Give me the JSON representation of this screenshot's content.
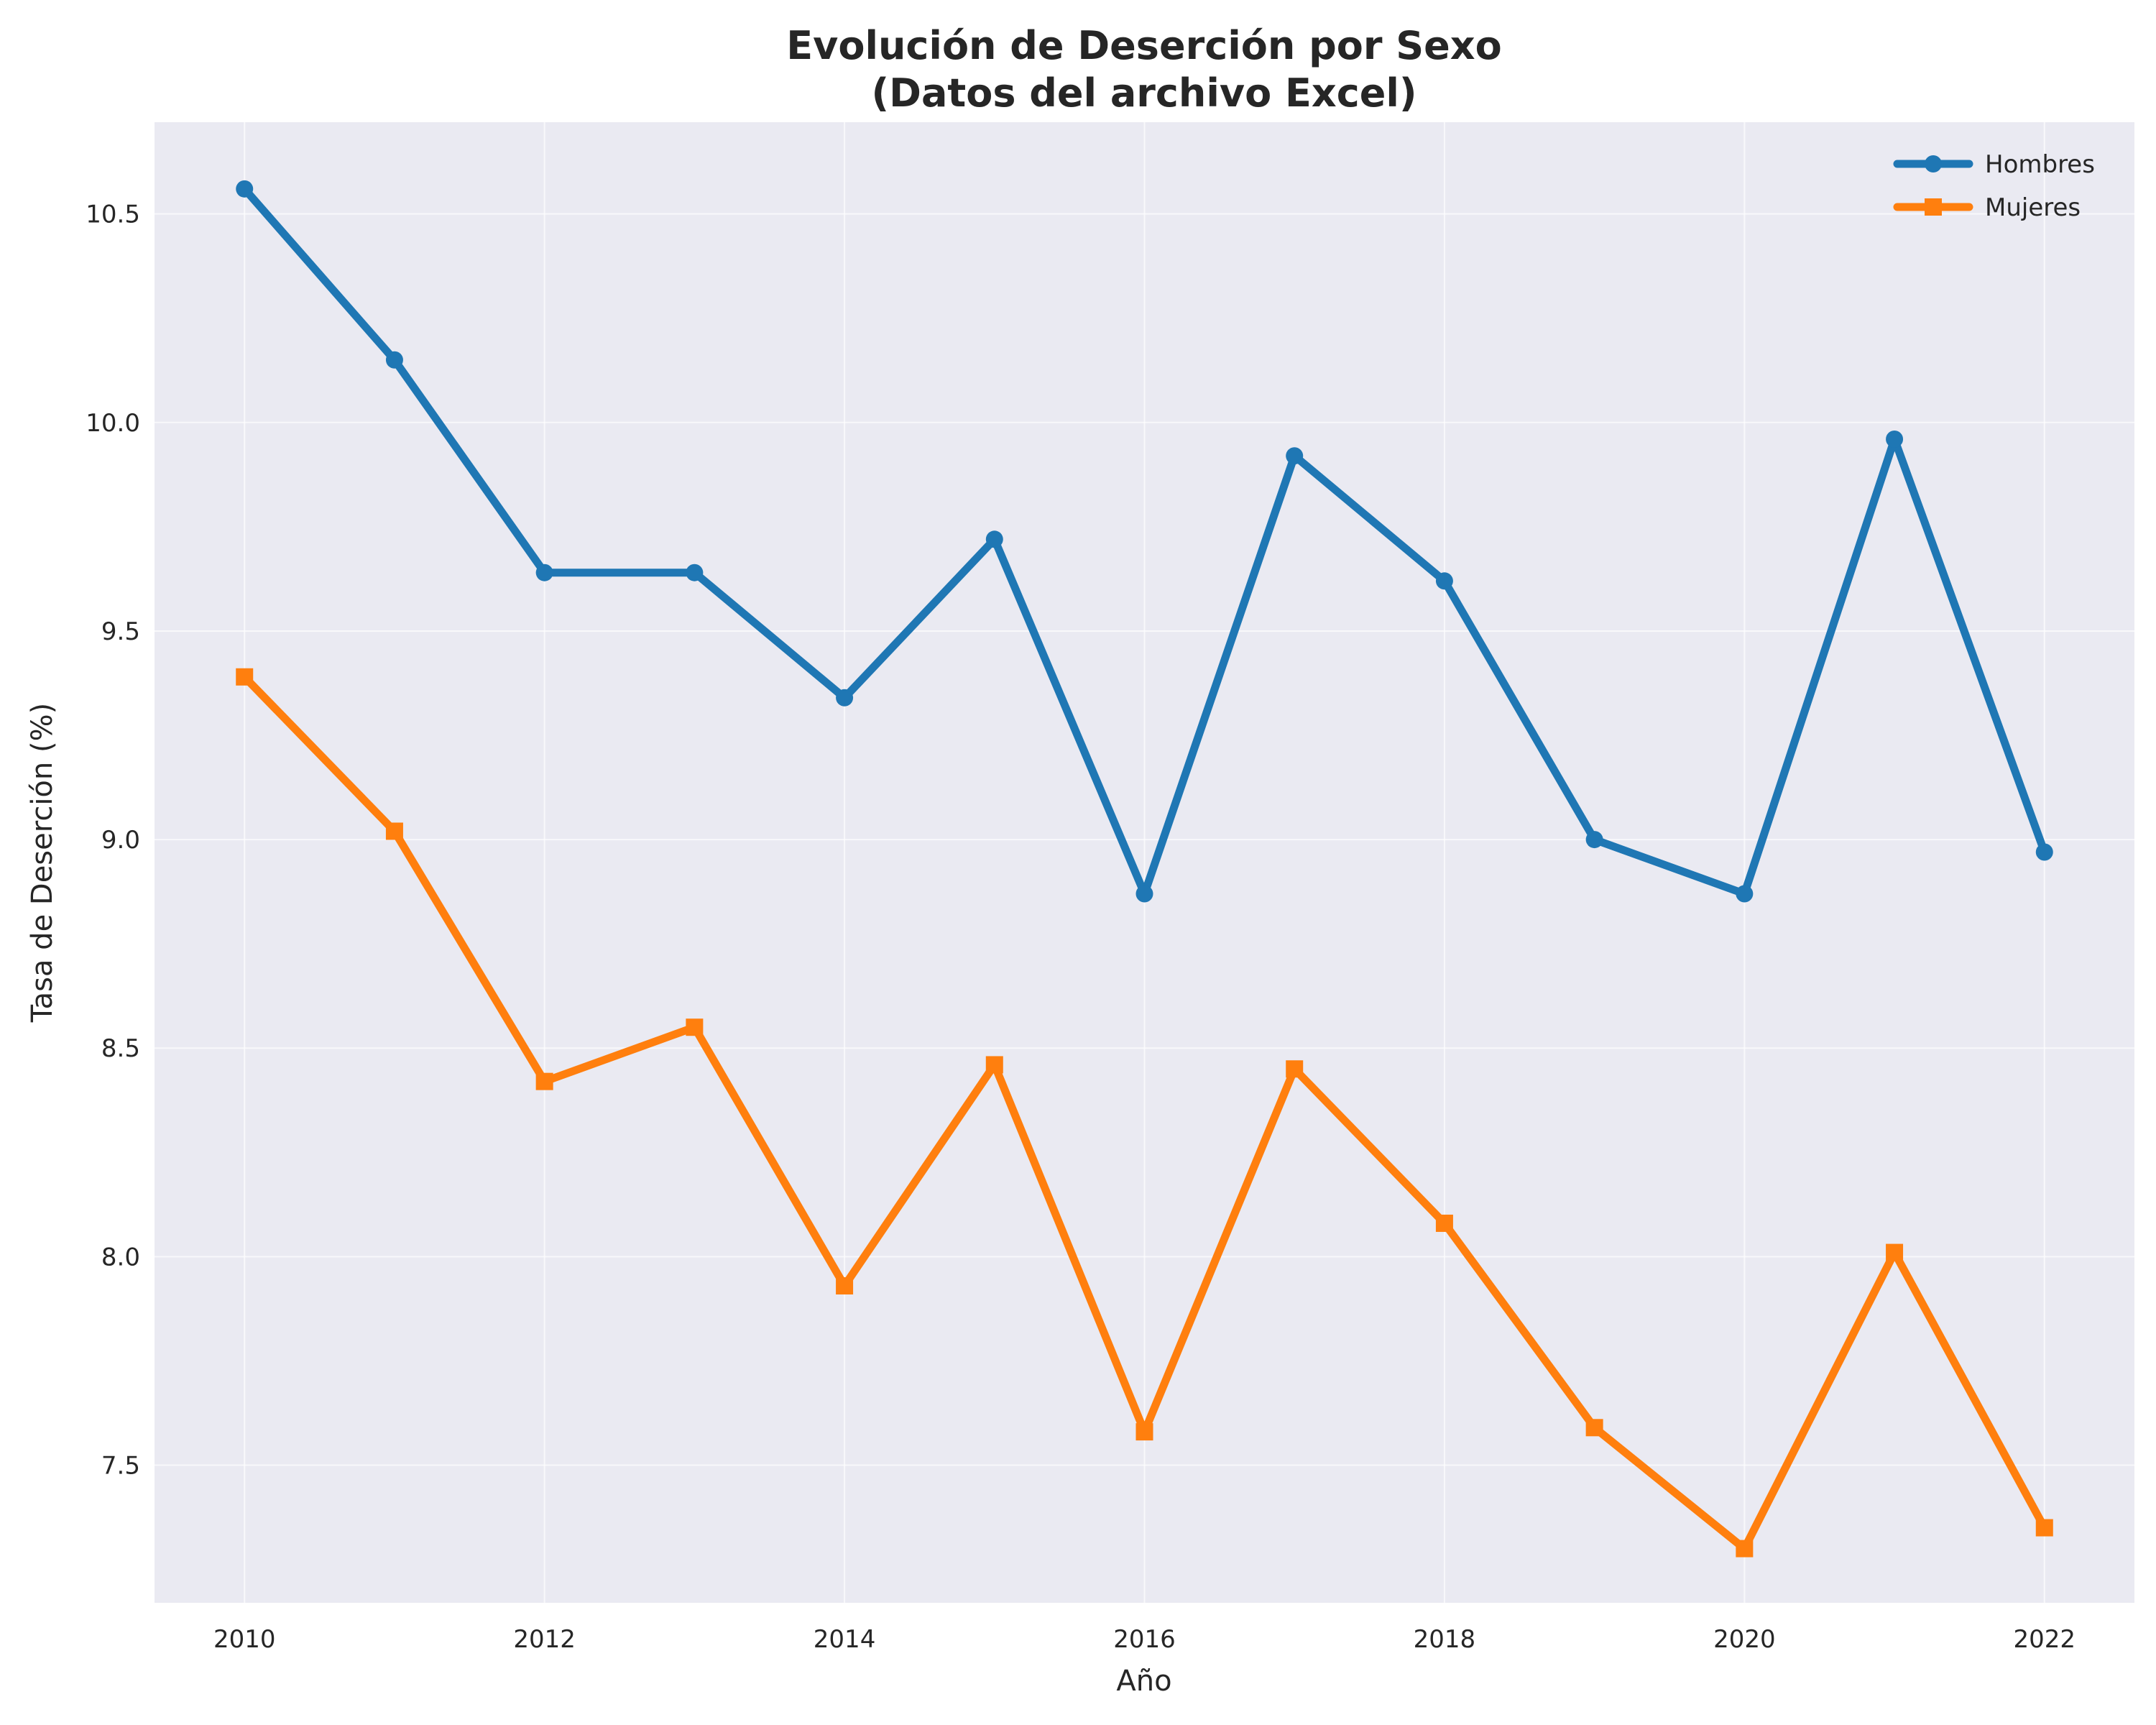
{
  "chart_data": {
    "type": "line",
    "title_line1": "Evolución de Deserción por Sexo",
    "title_line2": "(Datos del archivo Excel)",
    "xlabel": "Año",
    "ylabel": "Tasa de Deserción (%)",
    "x": [
      2010,
      2011,
      2012,
      2013,
      2014,
      2015,
      2016,
      2017,
      2018,
      2019,
      2020,
      2021,
      2022
    ],
    "xlim": [
      2009.4,
      2022.6
    ],
    "ylim": [
      7.17,
      10.72
    ],
    "x_ticks": [
      "2010",
      "2012",
      "2014",
      "2016",
      "2018",
      "2020",
      "2022"
    ],
    "y_ticks": [
      "7.5",
      "8.0",
      "8.5",
      "9.0",
      "9.5",
      "10.0",
      "10.5"
    ],
    "grid": true,
    "legend_position": "top-right",
    "series": [
      {
        "name": "Hombres",
        "color": "#1f77b4",
        "marker": "circle",
        "values": [
          10.56,
          10.15,
          9.64,
          9.64,
          9.34,
          9.72,
          8.87,
          9.92,
          9.62,
          9.0,
          8.87,
          9.96,
          8.97
        ]
      },
      {
        "name": "Mujeres",
        "color": "#ff7f0e",
        "marker": "square",
        "values": [
          9.39,
          9.02,
          8.42,
          8.55,
          7.93,
          8.46,
          7.58,
          8.45,
          8.08,
          7.59,
          7.3,
          8.01,
          7.35
        ]
      }
    ],
    "colors": {
      "plot_background": "#eaeaf2",
      "grid": "#ffffff",
      "text": "#262626"
    }
  }
}
